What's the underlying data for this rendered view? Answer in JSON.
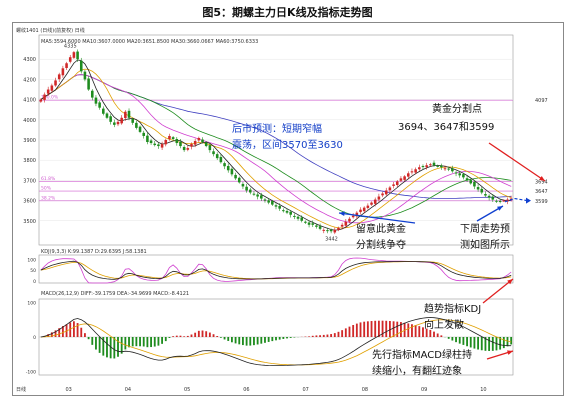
{
  "figure_title": "图5：期螺主力日K线及指标走势图",
  "colors": {
    "up": "#d02828",
    "down": "#1e8c1e",
    "ma5": "#222222",
    "ma10": "#e0a000",
    "ma20": "#d040d0",
    "ma30": "#1e8c1e",
    "ma60": "#4040c0",
    "ma120": "#e080e0",
    "fib": "#d060d0",
    "arrow_red": "#e02020",
    "arrow_blue": "#1040d0",
    "k": "#222222",
    "d": "#e0a000",
    "j": "#d040d0",
    "dif": "#222222",
    "dea": "#e0a000"
  },
  "header": {
    "top_left": "螺纹1401 (日线)(前复权) 日线",
    "ma_line": "MA5:3594.6000  MA10:3607.0000  MA20:3651.8500  MA30:3660.0667  MA60:3750.6333",
    "kdj_line": "KDJ(9,3,3)  K:99.1387  D:29.6395  J:58.1381",
    "macd_line": "MACD(26,12,9)  DIFF:-39.1759  DEA:-34.9699  MACD:-8.4121",
    "bottom_left": "日线"
  },
  "annotations": {
    "forecast": [
      "后市预测：短期窄幅",
      "震荡，区间3570至3630"
    ],
    "fib_title": "黄金分割点",
    "fib_levels": "3694、3647和3599",
    "fib_resist": [
      "留意此黄金",
      "分割线争夺"
    ],
    "next_week": [
      "下周走势预",
      "测如图所示"
    ],
    "kdj": [
      "趋势指标KDJ",
      "向上发散"
    ],
    "macd": [
      "先行指标MACD绿柱持",
      "续缩小，有翻红迹象"
    ]
  },
  "chart_data": {
    "type": "candlestick",
    "price_axis": {
      "ylim": [
        3380,
        4420
      ],
      "ticks": [
        3500,
        3600,
        3700,
        3800,
        3900,
        4000,
        4100,
        4200,
        4300
      ]
    },
    "right_levels": [
      4097,
      3694,
      3647,
      3599
    ],
    "fib_left_labels": [
      "100.0%",
      "61.8%",
      "50%",
      "38.2%"
    ],
    "high_label": "4335",
    "low_label": "3442",
    "month_labels": [
      "03",
      "04",
      "05",
      "06",
      "07",
      "08",
      "09",
      "10"
    ],
    "closes": [
      4100,
      4125,
      4150,
      4170,
      4195,
      4225,
      4255,
      4280,
      4310,
      4335,
      4300,
      4240,
      4200,
      4150,
      4110,
      4080,
      4060,
      4030,
      4010,
      3990,
      3975,
      3990,
      4010,
      4040,
      4010,
      3985,
      3960,
      3940,
      3920,
      3890,
      3885,
      3875,
      3870,
      3880,
      3900,
      3920,
      3905,
      3885,
      3870,
      3850,
      3860,
      3880,
      3895,
      3910,
      3890,
      3870,
      3850,
      3830,
      3810,
      3790,
      3770,
      3750,
      3730,
      3710,
      3690,
      3670,
      3650,
      3640,
      3630,
      3620,
      3610,
      3600,
      3590,
      3580,
      3570,
      3560,
      3550,
      3540,
      3530,
      3520,
      3510,
      3500,
      3490,
      3480,
      3480,
      3470,
      3460,
      3455,
      3450,
      3448,
      3455,
      3465,
      3480,
      3495,
      3510,
      3525,
      3540,
      3555,
      3565,
      3575,
      3590,
      3605,
      3620,
      3635,
      3650,
      3665,
      3680,
      3695,
      3710,
      3720,
      3735,
      3745,
      3755,
      3765,
      3770,
      3775,
      3780,
      3775,
      3770,
      3765,
      3760,
      3755,
      3745,
      3735,
      3725,
      3715,
      3700,
      3685,
      3670,
      3655,
      3640,
      3625,
      3615,
      3605,
      3598,
      3594,
      3600,
      3605,
      3610
    ],
    "candle_extra": {
      "opens_hint": "derived by script",
      "kdj": {
        "ylim": [
          -10,
          120
        ],
        "ticks": [
          0,
          50,
          100
        ]
      },
      "macd": {
        "ylim": [
          -110,
          110
        ],
        "ticks": [
          -100,
          0,
          100
        ]
      }
    },
    "forecast_path": [
      3594,
      3610,
      3600
    ]
  }
}
